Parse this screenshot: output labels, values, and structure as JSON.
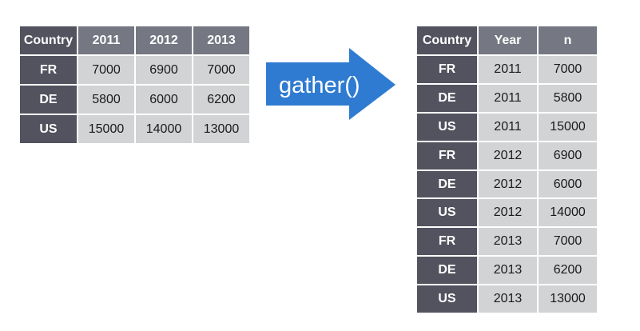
{
  "wide_table": {
    "headers": [
      "Country",
      "2011",
      "2012",
      "2013"
    ],
    "rows": [
      [
        "FR",
        "7000",
        "6900",
        "7000"
      ],
      [
        "DE",
        "5800",
        "6000",
        "6200"
      ],
      [
        "US",
        "15000",
        "14000",
        "13000"
      ]
    ]
  },
  "operation": {
    "label": "gather()",
    "color": "#2f7bd1"
  },
  "long_table": {
    "headers": [
      "Country",
      "Year",
      "n"
    ],
    "rows": [
      [
        "FR",
        "2011",
        "7000"
      ],
      [
        "DE",
        "2011",
        "5800"
      ],
      [
        "US",
        "2011",
        "15000"
      ],
      [
        "FR",
        "2012",
        "6900"
      ],
      [
        "DE",
        "2012",
        "6000"
      ],
      [
        "US",
        "2012",
        "14000"
      ],
      [
        "FR",
        "2013",
        "7000"
      ],
      [
        "DE",
        "2013",
        "6200"
      ],
      [
        "US",
        "2013",
        "13000"
      ]
    ]
  }
}
